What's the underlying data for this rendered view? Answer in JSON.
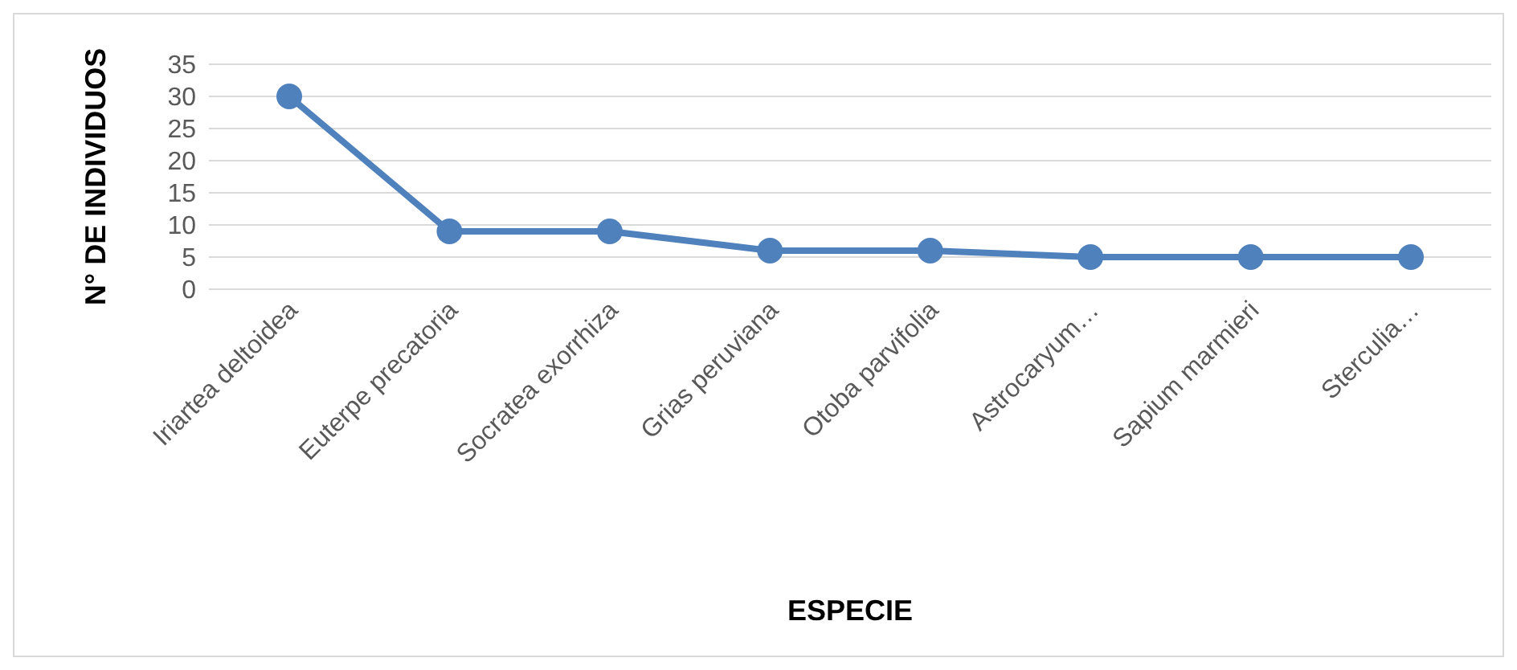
{
  "chart_data": {
    "type": "line",
    "xlabel": "ESPECIE",
    "ylabel": "N° DE INDIVIDUOS",
    "categories": [
      "Iriartea deltoidea",
      "Euterpe precatoria",
      "Socratea exorrhiza",
      "Grias peruviana",
      "Otoba parvifolia",
      "Astrocaryum…",
      "Sapium marmieri",
      "Sterculia…"
    ],
    "values": [
      30,
      9,
      9,
      6,
      6,
      5,
      5,
      5
    ],
    "color": "#4f81bd",
    "ylim": [
      0,
      35
    ],
    "yticks": [
      0,
      5,
      10,
      15,
      20,
      25,
      30,
      35
    ],
    "grid": "y",
    "marker": "circle",
    "line_style": "solid"
  }
}
